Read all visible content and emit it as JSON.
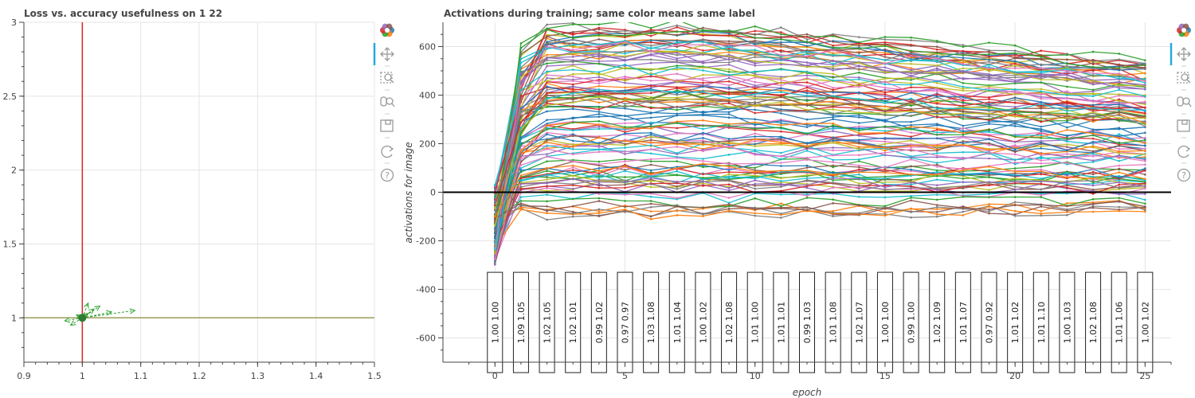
{
  "colors": {
    "vline": "#d62728",
    "hline": "#9c9c5a",
    "arrows": "#2ca02c",
    "zero_line": "#000000",
    "toolbar_active": "#26aae1",
    "palette": [
      "#1f77b4",
      "#ff7f0e",
      "#2ca02c",
      "#d62728",
      "#9467bd",
      "#8c564b",
      "#e377c2",
      "#7f7f7f",
      "#bcbd22",
      "#17becf"
    ]
  },
  "toolbar": {
    "icons": [
      "bokeh-logo-icon",
      "pan-icon",
      "box-zoom-icon",
      "wheel-zoom-icon",
      "save-icon",
      "reset-icon",
      "help-icon"
    ]
  },
  "chart_data": [
    {
      "type": "scatter",
      "title": "Loss vs. accuracy usefulness on 1 22",
      "xlabel": "",
      "ylabel": "",
      "xlim": [
        0.9,
        1.5
      ],
      "ylim": [
        0.7,
        3.0
      ],
      "x_ticks": [
        "0.9",
        "1",
        "1.1",
        "1.2",
        "1.3",
        "1.4",
        "1.5"
      ],
      "y_ticks": [
        "1",
        "1.5",
        "2",
        "2.5",
        "3"
      ],
      "vertical_reference": 1.0,
      "horizontal_reference": 1.0,
      "arrows": [
        {
          "x0": 1.0,
          "y0": 1.0,
          "x1": 1.09,
          "y1": 1.05
        },
        {
          "x0": 1.0,
          "y0": 1.0,
          "x1": 0.98,
          "y1": 0.95
        },
        {
          "x0": 1.0,
          "y0": 1.0,
          "x1": 1.03,
          "y1": 1.08
        },
        {
          "x0": 1.0,
          "y0": 1.0,
          "x1": 1.01,
          "y1": 1.1
        },
        {
          "x0": 1.0,
          "y0": 1.0,
          "x1": 1.02,
          "y1": 1.06
        },
        {
          "x0": 1.0,
          "y0": 1.0,
          "x1": 0.99,
          "y1": 1.02
        },
        {
          "x0": 1.0,
          "y0": 1.0,
          "x1": 1.01,
          "y1": 1.03
        },
        {
          "x0": 1.0,
          "y0": 1.0,
          "x1": 1.05,
          "y1": 1.04
        },
        {
          "x0": 1.0,
          "y0": 1.0,
          "x1": 0.97,
          "y1": 0.98
        }
      ]
    },
    {
      "type": "line",
      "title": "Activations during training; same color means same label",
      "xlabel": "epoch",
      "ylabel": "activations for image",
      "xlim": [
        -2,
        26
      ],
      "ylim": [
        -700,
        700
      ],
      "x_ticks": [
        0,
        5,
        10,
        15,
        20,
        25
      ],
      "y_ticks": [
        -600,
        -400,
        -200,
        0,
        200,
        400,
        600
      ],
      "reference_line": 0,
      "x": [
        0,
        1,
        2,
        3,
        4,
        5,
        6,
        7,
        8,
        9,
        10,
        11,
        12,
        13,
        14,
        15,
        16,
        17,
        18,
        19,
        20,
        21,
        22,
        23,
        24,
        25
      ],
      "series_count": 100,
      "profile_shape": {
        "start_range": [
          -300,
          30
        ],
        "plateau_range": [
          -100,
          700
        ],
        "late_decay": 0.8
      },
      "epoch_annotations": [
        [
          "1.00",
          "1.00"
        ],
        [
          "1.09",
          "1.05"
        ],
        [
          "1.02",
          "1.05"
        ],
        [
          "1.02",
          "1.01"
        ],
        [
          "0.99",
          "1.02"
        ],
        [
          "0.97",
          "0.97"
        ],
        [
          "1.03",
          "1.08"
        ],
        [
          "1.01",
          "1.04"
        ],
        [
          "1.00",
          "1.02"
        ],
        [
          "1.02",
          "1.08"
        ],
        [
          "1.01",
          "1.00"
        ],
        [
          "1.01",
          "1.01"
        ],
        [
          "0.99",
          "1.03"
        ],
        [
          "1.01",
          "1.08"
        ],
        [
          "1.02",
          "1.07"
        ],
        [
          "1.00",
          "1.00"
        ],
        [
          "0.99",
          "1.00"
        ],
        [
          "1.02",
          "1.09"
        ],
        [
          "1.01",
          "1.07"
        ],
        [
          "0.97",
          "0.92"
        ],
        [
          "1.01",
          "1.02"
        ],
        [
          "1.01",
          "1.10"
        ],
        [
          "1.00",
          "1.03"
        ],
        [
          "1.02",
          "1.08"
        ],
        [
          "1.01",
          "1.06"
        ],
        [
          "1.00",
          "1.02"
        ]
      ]
    }
  ]
}
